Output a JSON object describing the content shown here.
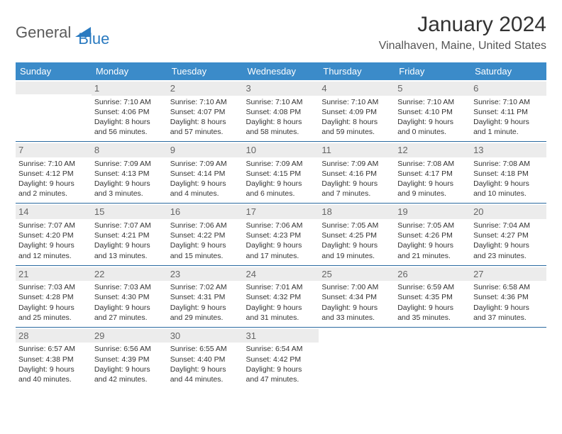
{
  "brand": {
    "part1": "General",
    "part2": "Blue"
  },
  "title": "January 2024",
  "location": "Vinalhaven, Maine, United States",
  "styling": {
    "page_bg": "#ffffff",
    "header_bg": "#3b8bc9",
    "header_text": "#ffffff",
    "daynum_bg": "#ececec",
    "daynum_color": "#666666",
    "row_sep_color": "#2a6aa0",
    "body_text": "#333333",
    "brand_gray": "#5a5a5a",
    "brand_blue": "#2a7ac0",
    "cell_fontsize": 10.5,
    "header_fontsize": 13,
    "title_fontsize": 30,
    "location_fontsize": 16
  },
  "weekdays": [
    "Sunday",
    "Monday",
    "Tuesday",
    "Wednesday",
    "Thursday",
    "Friday",
    "Saturday"
  ],
  "weeks": [
    [
      null,
      {
        "d": "1",
        "sr": "Sunrise: 7:10 AM",
        "ss": "Sunset: 4:06 PM",
        "dl1": "Daylight: 8 hours",
        "dl2": "and 56 minutes."
      },
      {
        "d": "2",
        "sr": "Sunrise: 7:10 AM",
        "ss": "Sunset: 4:07 PM",
        "dl1": "Daylight: 8 hours",
        "dl2": "and 57 minutes."
      },
      {
        "d": "3",
        "sr": "Sunrise: 7:10 AM",
        "ss": "Sunset: 4:08 PM",
        "dl1": "Daylight: 8 hours",
        "dl2": "and 58 minutes."
      },
      {
        "d": "4",
        "sr": "Sunrise: 7:10 AM",
        "ss": "Sunset: 4:09 PM",
        "dl1": "Daylight: 8 hours",
        "dl2": "and 59 minutes."
      },
      {
        "d": "5",
        "sr": "Sunrise: 7:10 AM",
        "ss": "Sunset: 4:10 PM",
        "dl1": "Daylight: 9 hours",
        "dl2": "and 0 minutes."
      },
      {
        "d": "6",
        "sr": "Sunrise: 7:10 AM",
        "ss": "Sunset: 4:11 PM",
        "dl1": "Daylight: 9 hours",
        "dl2": "and 1 minute."
      }
    ],
    [
      {
        "d": "7",
        "sr": "Sunrise: 7:10 AM",
        "ss": "Sunset: 4:12 PM",
        "dl1": "Daylight: 9 hours",
        "dl2": "and 2 minutes."
      },
      {
        "d": "8",
        "sr": "Sunrise: 7:09 AM",
        "ss": "Sunset: 4:13 PM",
        "dl1": "Daylight: 9 hours",
        "dl2": "and 3 minutes."
      },
      {
        "d": "9",
        "sr": "Sunrise: 7:09 AM",
        "ss": "Sunset: 4:14 PM",
        "dl1": "Daylight: 9 hours",
        "dl2": "and 4 minutes."
      },
      {
        "d": "10",
        "sr": "Sunrise: 7:09 AM",
        "ss": "Sunset: 4:15 PM",
        "dl1": "Daylight: 9 hours",
        "dl2": "and 6 minutes."
      },
      {
        "d": "11",
        "sr": "Sunrise: 7:09 AM",
        "ss": "Sunset: 4:16 PM",
        "dl1": "Daylight: 9 hours",
        "dl2": "and 7 minutes."
      },
      {
        "d": "12",
        "sr": "Sunrise: 7:08 AM",
        "ss": "Sunset: 4:17 PM",
        "dl1": "Daylight: 9 hours",
        "dl2": "and 9 minutes."
      },
      {
        "d": "13",
        "sr": "Sunrise: 7:08 AM",
        "ss": "Sunset: 4:18 PM",
        "dl1": "Daylight: 9 hours",
        "dl2": "and 10 minutes."
      }
    ],
    [
      {
        "d": "14",
        "sr": "Sunrise: 7:07 AM",
        "ss": "Sunset: 4:20 PM",
        "dl1": "Daylight: 9 hours",
        "dl2": "and 12 minutes."
      },
      {
        "d": "15",
        "sr": "Sunrise: 7:07 AM",
        "ss": "Sunset: 4:21 PM",
        "dl1": "Daylight: 9 hours",
        "dl2": "and 13 minutes."
      },
      {
        "d": "16",
        "sr": "Sunrise: 7:06 AM",
        "ss": "Sunset: 4:22 PM",
        "dl1": "Daylight: 9 hours",
        "dl2": "and 15 minutes."
      },
      {
        "d": "17",
        "sr": "Sunrise: 7:06 AM",
        "ss": "Sunset: 4:23 PM",
        "dl1": "Daylight: 9 hours",
        "dl2": "and 17 minutes."
      },
      {
        "d": "18",
        "sr": "Sunrise: 7:05 AM",
        "ss": "Sunset: 4:25 PM",
        "dl1": "Daylight: 9 hours",
        "dl2": "and 19 minutes."
      },
      {
        "d": "19",
        "sr": "Sunrise: 7:05 AM",
        "ss": "Sunset: 4:26 PM",
        "dl1": "Daylight: 9 hours",
        "dl2": "and 21 minutes."
      },
      {
        "d": "20",
        "sr": "Sunrise: 7:04 AM",
        "ss": "Sunset: 4:27 PM",
        "dl1": "Daylight: 9 hours",
        "dl2": "and 23 minutes."
      }
    ],
    [
      {
        "d": "21",
        "sr": "Sunrise: 7:03 AM",
        "ss": "Sunset: 4:28 PM",
        "dl1": "Daylight: 9 hours",
        "dl2": "and 25 minutes."
      },
      {
        "d": "22",
        "sr": "Sunrise: 7:03 AM",
        "ss": "Sunset: 4:30 PM",
        "dl1": "Daylight: 9 hours",
        "dl2": "and 27 minutes."
      },
      {
        "d": "23",
        "sr": "Sunrise: 7:02 AM",
        "ss": "Sunset: 4:31 PM",
        "dl1": "Daylight: 9 hours",
        "dl2": "and 29 minutes."
      },
      {
        "d": "24",
        "sr": "Sunrise: 7:01 AM",
        "ss": "Sunset: 4:32 PM",
        "dl1": "Daylight: 9 hours",
        "dl2": "and 31 minutes."
      },
      {
        "d": "25",
        "sr": "Sunrise: 7:00 AM",
        "ss": "Sunset: 4:34 PM",
        "dl1": "Daylight: 9 hours",
        "dl2": "and 33 minutes."
      },
      {
        "d": "26",
        "sr": "Sunrise: 6:59 AM",
        "ss": "Sunset: 4:35 PM",
        "dl1": "Daylight: 9 hours",
        "dl2": "and 35 minutes."
      },
      {
        "d": "27",
        "sr": "Sunrise: 6:58 AM",
        "ss": "Sunset: 4:36 PM",
        "dl1": "Daylight: 9 hours",
        "dl2": "and 37 minutes."
      }
    ],
    [
      {
        "d": "28",
        "sr": "Sunrise: 6:57 AM",
        "ss": "Sunset: 4:38 PM",
        "dl1": "Daylight: 9 hours",
        "dl2": "and 40 minutes."
      },
      {
        "d": "29",
        "sr": "Sunrise: 6:56 AM",
        "ss": "Sunset: 4:39 PM",
        "dl1": "Daylight: 9 hours",
        "dl2": "and 42 minutes."
      },
      {
        "d": "30",
        "sr": "Sunrise: 6:55 AM",
        "ss": "Sunset: 4:40 PM",
        "dl1": "Daylight: 9 hours",
        "dl2": "and 44 minutes."
      },
      {
        "d": "31",
        "sr": "Sunrise: 6:54 AM",
        "ss": "Sunset: 4:42 PM",
        "dl1": "Daylight: 9 hours",
        "dl2": "and 47 minutes."
      },
      null,
      null,
      null
    ]
  ]
}
